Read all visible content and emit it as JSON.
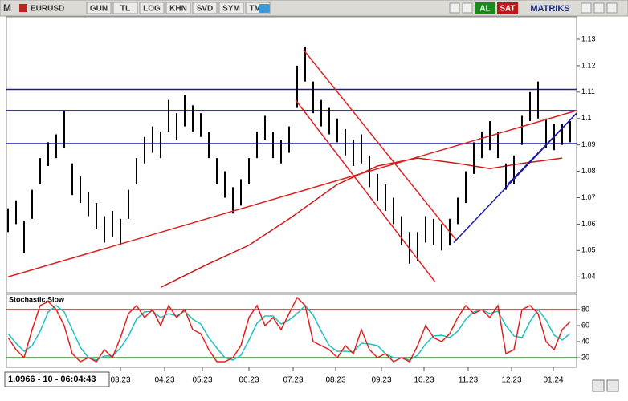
{
  "toolbar": {
    "symbol_icon": "M",
    "symbol": "EURUSD",
    "buttons": [
      "GUN",
      "TL",
      "LOG",
      "KHN",
      "SVD",
      "SYM",
      "TMP"
    ],
    "buy": "AL",
    "sell": "SAT",
    "brand": "MATRIKS"
  },
  "status": "1.0966 - 10 - 06:04:43",
  "chart_data": [
    {
      "type": "ohlc",
      "color": "#000000",
      "xlim": [
        -0.2,
        70.8
      ],
      "ylim": [
        1.034,
        1.1385
      ],
      "yticks": [
        1.04,
        1.05,
        1.06,
        1.07,
        1.08,
        1.09,
        1.1,
        1.11,
        1.12,
        1.13
      ],
      "high": [
        1.066,
        1.069,
        1.061,
        1.073,
        1.085,
        1.091,
        1.094,
        1.103,
        1.083,
        1.078,
        1.072,
        1.068,
        1.063,
        1.065,
        1.062,
        1.073,
        1.085,
        1.093,
        1.097,
        1.095,
        1.107,
        1.102,
        1.109,
        1.105,
        1.102,
        1.095,
        1.085,
        1.08,
        1.074,
        1.077,
        1.085,
        1.095,
        1.101,
        1.095,
        1.092,
        1.097,
        1.12,
        1.127,
        1.114,
        1.107,
        1.104,
        1.1,
        1.096,
        1.092,
        1.094,
        1.086,
        1.079,
        1.075,
        1.07,
        1.063,
        1.057,
        1.057,
        1.063,
        1.062,
        1.06,
        1.062,
        1.07,
        1.08,
        1.091,
        1.095,
        1.099,
        1.095,
        1.083,
        1.086,
        1.101,
        1.11,
        1.114,
        1.1,
        1.098,
        1.098,
        1.099
      ],
      "low": [
        1.057,
        1.06,
        1.049,
        1.062,
        1.075,
        1.082,
        1.085,
        1.089,
        1.071,
        1.068,
        1.063,
        1.058,
        1.053,
        1.055,
        1.052,
        1.062,
        1.075,
        1.083,
        1.087,
        1.085,
        1.095,
        1.092,
        1.097,
        1.095,
        1.093,
        1.085,
        1.075,
        1.07,
        1.064,
        1.067,
        1.075,
        1.085,
        1.092,
        1.085,
        1.083,
        1.087,
        1.104,
        1.114,
        1.102,
        1.097,
        1.094,
        1.091,
        1.086,
        1.082,
        1.083,
        1.074,
        1.069,
        1.065,
        1.06,
        1.052,
        1.045,
        1.046,
        1.053,
        1.052,
        1.05,
        1.052,
        1.06,
        1.068,
        1.079,
        1.085,
        1.088,
        1.085,
        1.073,
        1.075,
        1.09,
        1.099,
        1.1,
        1.089,
        1.088,
        1.09,
        1.091
      ],
      "levels": [
        {
          "value": 1.111,
          "color": "#1c1ca8"
        },
        {
          "value": 1.103,
          "color": "#1c1ca8"
        },
        {
          "value": 1.0905,
          "color": "#1c1ca8"
        }
      ],
      "trendlines": [
        {
          "color": "#e02020",
          "x": [
            0,
            70.8
          ],
          "y": [
            1.04,
            1.103
          ]
        },
        {
          "color": "#e02020",
          "x": [
            36.8,
            55.8
          ],
          "y": [
            1.126,
            1.054
          ]
        },
        {
          "color": "#e02020",
          "x": [
            35.8,
            53.2
          ],
          "y": [
            1.107,
            1.038
          ]
        },
        {
          "color": "#1c1ca8",
          "x": [
            55.5,
            70.8
          ],
          "y": [
            1.053,
            1.102
          ]
        },
        {
          "color": "#1c1ca8",
          "x": [
            62.2,
            70.8
          ],
          "y": [
            1.075,
            1.102
          ]
        }
      ],
      "moving_average": {
        "color": "#d01818",
        "x": [
          19,
          25,
          30,
          35,
          41,
          46,
          51,
          56,
          60,
          64,
          69
        ],
        "y": [
          1.036,
          1.045,
          1.052,
          1.062,
          1.075,
          1.082,
          1.085,
          1.083,
          1.081,
          1.083,
          1.085
        ]
      }
    },
    {
      "type": "line",
      "title": "Stochastic,Slow",
      "xlim": [
        -0.2,
        70.8
      ],
      "ylim": [
        8,
        99
      ],
      "yticks": [
        20,
        40,
        60,
        80
      ],
      "xticks": [
        {
          "value": 14,
          "label": "03.23"
        },
        {
          "value": 19.5,
          "label": "04.23"
        },
        {
          "value": 24.2,
          "label": "05.23"
        },
        {
          "value": 30,
          "label": "06.23"
        },
        {
          "value": 35.5,
          "label": "07.23"
        },
        {
          "value": 40.8,
          "label": "08.23"
        },
        {
          "value": 46.5,
          "label": "09.23"
        },
        {
          "value": 51.8,
          "label": "10.23"
        },
        {
          "value": 57.3,
          "label": "11.23"
        },
        {
          "value": 62.7,
          "label": "12.23"
        },
        {
          "value": 67.9,
          "label": "01.24"
        }
      ],
      "bands": [
        {
          "value": 80,
          "color": "#a00000"
        },
        {
          "value": 20,
          "color": "#008000"
        }
      ],
      "series": [
        {
          "color": "#e02020",
          "values": [
            45,
            30,
            20,
            55,
            85,
            90,
            80,
            60,
            25,
            15,
            20,
            15,
            30,
            20,
            45,
            75,
            85,
            70,
            80,
            60,
            85,
            70,
            80,
            55,
            50,
            30,
            15,
            15,
            20,
            35,
            70,
            85,
            60,
            70,
            55,
            75,
            95,
            85,
            40,
            35,
            30,
            20,
            35,
            25,
            55,
            30,
            20,
            25,
            15,
            20,
            15,
            35,
            60,
            45,
            40,
            50,
            70,
            85,
            75,
            80,
            70,
            85,
            25,
            30,
            80,
            85,
            75,
            40,
            30,
            55,
            65
          ]
        },
        {
          "color": "#20c0c0",
          "values": [
            50,
            38,
            28,
            35,
            53,
            77,
            85,
            77,
            55,
            33,
            20,
            17,
            22,
            22,
            32,
            47,
            68,
            77,
            78,
            70,
            75,
            72,
            78,
            68,
            62,
            45,
            32,
            20,
            17,
            23,
            42,
            63,
            72,
            72,
            62,
            67,
            75,
            85,
            73,
            53,
            35,
            28,
            28,
            27,
            38,
            37,
            35,
            25,
            20,
            20,
            17,
            23,
            37,
            47,
            48,
            45,
            53,
            68,
            77,
            80,
            75,
            78,
            60,
            47,
            45,
            65,
            80,
            67,
            48,
            42,
            50
          ]
        }
      ]
    }
  ]
}
